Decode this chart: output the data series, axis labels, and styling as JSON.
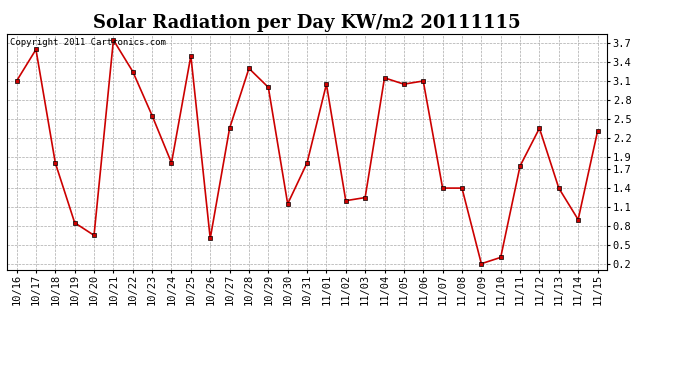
{
  "title": "Solar Radiation per Day KW/m2 20111115",
  "copyright_text": "Copyright 2011 Cartronics.com",
  "dates": [
    "10/16",
    "10/17",
    "10/18",
    "10/19",
    "10/20",
    "10/21",
    "10/22",
    "10/23",
    "10/24",
    "10/25",
    "10/26",
    "10/27",
    "10/28",
    "10/29",
    "10/30",
    "10/31",
    "11/01",
    "11/02",
    "11/03",
    "11/04",
    "11/05",
    "11/06",
    "11/07",
    "11/08",
    "11/09",
    "11/10",
    "11/11",
    "11/12",
    "11/13",
    "11/14",
    "11/15"
  ],
  "values": [
    3.1,
    3.6,
    1.8,
    0.85,
    0.65,
    3.75,
    3.25,
    2.55,
    1.8,
    3.5,
    0.6,
    2.35,
    3.3,
    3.0,
    1.15,
    1.8,
    3.05,
    1.2,
    1.25,
    3.15,
    3.05,
    3.1,
    1.4,
    1.4,
    0.2,
    0.3,
    1.75,
    2.35,
    1.4,
    0.9,
    2.3
  ],
  "line_color": "#cc0000",
  "marker_color": "#000000",
  "bg_color": "#ffffff",
  "grid_color": "#aaaaaa",
  "ylim": [
    0.1,
    3.85
  ],
  "yticks": [
    0.2,
    0.5,
    0.8,
    1.1,
    1.4,
    1.7,
    1.9,
    2.2,
    2.5,
    2.8,
    3.1,
    3.4,
    3.7
  ],
  "title_fontsize": 13,
  "tick_fontsize": 7.5,
  "copyright_fontsize": 6.5,
  "figwidth": 6.9,
  "figheight": 3.75,
  "dpi": 100
}
